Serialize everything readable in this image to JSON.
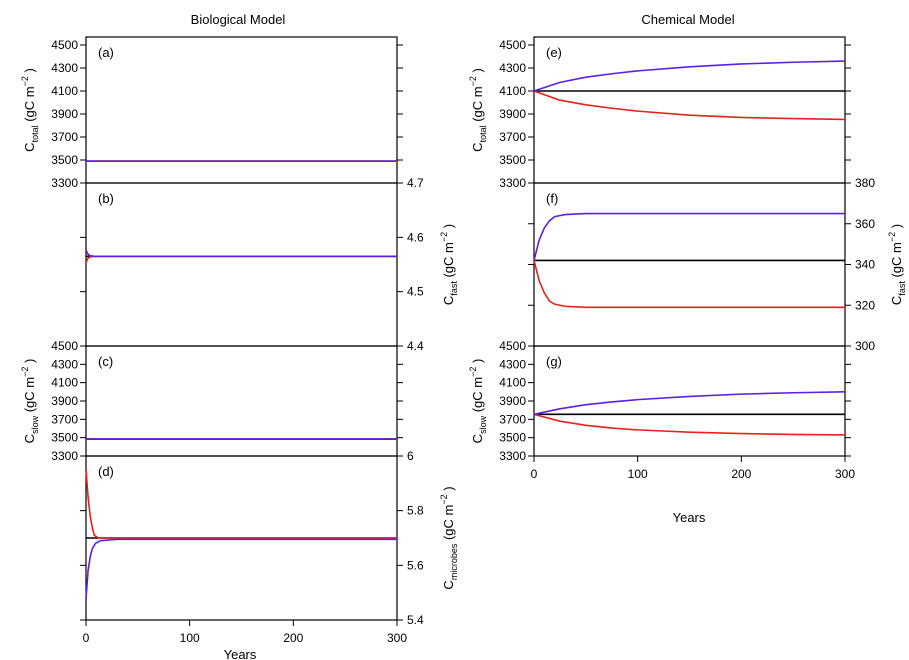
{
  "figure": {
    "column_titles": [
      "Biological Model",
      "Chemical Model"
    ],
    "x_label": "Years"
  },
  "colors": {
    "baseline": "#000000",
    "decrease": "#e8211b",
    "increase": "#5b1fe6"
  },
  "chart_data": [
    {
      "id": "a",
      "type": "line",
      "panel_label": "(a)",
      "column": "Biological Model",
      "axis_side": "left",
      "ylabel": {
        "main": "C",
        "sub": "total",
        "unit": " (gC m",
        "sup": "−2",
        "close": " )"
      },
      "xlim": [
        0,
        300
      ],
      "ylim": [
        3300,
        4500
      ],
      "y_ticks": [
        3300,
        3500,
        3700,
        3900,
        4100,
        4300,
        4500
      ],
      "series": [
        {
          "color": "#000000",
          "points": [
            [
              0,
              3490
            ],
            [
              300,
              3490
            ]
          ]
        },
        {
          "color": "#e8211b",
          "points": [
            [
              0,
              3490
            ],
            [
              300,
              3490
            ]
          ]
        },
        {
          "color": "#5b1fe6",
          "points": [
            [
              0,
              3490
            ],
            [
              300,
              3490
            ]
          ]
        }
      ]
    },
    {
      "id": "b",
      "type": "line",
      "panel_label": "(b)",
      "column": "Biological Model",
      "axis_side": "right",
      "ylabel": {
        "main": "C",
        "sub": "fast",
        "unit": " (gC m",
        "sup": "−2",
        "close": " )"
      },
      "xlim": [
        0,
        300
      ],
      "ylim": [
        4.4,
        4.7
      ],
      "y_ticks": [
        4.4,
        4.5,
        4.6,
        4.7
      ],
      "series": [
        {
          "color": "#000000",
          "points": [
            [
              0,
              4.565
            ],
            [
              300,
              4.565
            ]
          ]
        },
        {
          "color": "#e8211b",
          "points": [
            [
              0,
              4.553
            ],
            [
              1,
              4.558
            ],
            [
              2,
              4.562
            ],
            [
              4,
              4.564
            ],
            [
              8,
              4.565
            ],
            [
              300,
              4.565
            ]
          ]
        },
        {
          "color": "#5b1fe6",
          "points": [
            [
              0,
              4.577
            ],
            [
              1,
              4.572
            ],
            [
              2,
              4.569
            ],
            [
              4,
              4.566
            ],
            [
              8,
              4.565
            ],
            [
              300,
              4.565
            ]
          ]
        }
      ]
    },
    {
      "id": "c",
      "type": "line",
      "panel_label": "(c)",
      "column": "Biological Model",
      "axis_side": "left",
      "ylabel": {
        "main": "C",
        "sub": "slow",
        "unit": " (gC m",
        "sup": "−2",
        "close": " )"
      },
      "xlim": [
        0,
        300
      ],
      "ylim": [
        3300,
        4500
      ],
      "y_ticks": [
        3300,
        3500,
        3700,
        3900,
        4100,
        4300,
        4500
      ],
      "series": [
        {
          "color": "#000000",
          "points": [
            [
              0,
              3485
            ],
            [
              300,
              3485
            ]
          ]
        },
        {
          "color": "#e8211b",
          "points": [
            [
              0,
              3485
            ],
            [
              300,
              3485
            ]
          ]
        },
        {
          "color": "#5b1fe6",
          "points": [
            [
              0,
              3485
            ],
            [
              300,
              3485
            ]
          ]
        }
      ]
    },
    {
      "id": "d",
      "type": "line",
      "panel_label": "(d)",
      "column": "Biological Model",
      "axis_side": "right",
      "ylabel": {
        "main": "C",
        "sub": "microbes",
        "unit": " (gC m",
        "sup": "−2",
        "close": " )"
      },
      "xlim": [
        0,
        300
      ],
      "ylim": [
        5.4,
        6.0
      ],
      "x_ticks": [
        0,
        100,
        200,
        300
      ],
      "y_ticks": [
        5.4,
        5.6,
        5.8,
        6.0
      ],
      "series": [
        {
          "color": "#000000",
          "points": [
            [
              0,
              5.7
            ],
            [
              300,
              5.7
            ]
          ]
        },
        {
          "color": "#e8211b",
          "points": [
            [
              0,
              5.95
            ],
            [
              2,
              5.85
            ],
            [
              4,
              5.78
            ],
            [
              6,
              5.74
            ],
            [
              8,
              5.71
            ],
            [
              12,
              5.7
            ],
            [
              300,
              5.7
            ]
          ]
        },
        {
          "color": "#5b1fe6",
          "points": [
            [
              0,
              5.48
            ],
            [
              2,
              5.58
            ],
            [
              4,
              5.63
            ],
            [
              6,
              5.66
            ],
            [
              9,
              5.68
            ],
            [
              14,
              5.69
            ],
            [
              30,
              5.695
            ],
            [
              300,
              5.695
            ]
          ]
        }
      ]
    },
    {
      "id": "e",
      "type": "line",
      "panel_label": "(e)",
      "column": "Chemical Model",
      "axis_side": "left",
      "ylabel": {
        "main": "C",
        "sub": "total",
        "unit": " (gC m",
        "sup": "−2",
        "close": " )"
      },
      "xlim": [
        0,
        300
      ],
      "ylim": [
        3300,
        4500
      ],
      "y_ticks": [
        3300,
        3500,
        3700,
        3900,
        4100,
        4300,
        4500
      ],
      "series": [
        {
          "color": "#000000",
          "points": [
            [
              0,
              4100
            ],
            [
              300,
              4100
            ]
          ]
        },
        {
          "color": "#e8211b",
          "points": [
            [
              0,
              4100
            ],
            [
              25,
              4020
            ],
            [
              50,
              3980
            ],
            [
              75,
              3950
            ],
            [
              100,
              3925
            ],
            [
              150,
              3890
            ],
            [
              200,
              3870
            ],
            [
              250,
              3860
            ],
            [
              300,
              3853
            ]
          ]
        },
        {
          "color": "#5b1fe6",
          "points": [
            [
              0,
              4100
            ],
            [
              25,
              4175
            ],
            [
              50,
              4220
            ],
            [
              75,
              4250
            ],
            [
              100,
              4275
            ],
            [
              150,
              4310
            ],
            [
              200,
              4335
            ],
            [
              250,
              4350
            ],
            [
              300,
              4360
            ]
          ]
        }
      ]
    },
    {
      "id": "f",
      "type": "line",
      "panel_label": "(f)",
      "column": "Chemical Model",
      "axis_side": "right",
      "ylabel": {
        "main": "C",
        "sub": "fast",
        "unit": " (gC m",
        "sup": "−2",
        "close": " )"
      },
      "xlim": [
        0,
        300
      ],
      "ylim": [
        300,
        380
      ],
      "y_ticks": [
        300,
        320,
        340,
        360,
        380
      ],
      "series": [
        {
          "color": "#000000",
          "points": [
            [
              0,
              342
            ],
            [
              300,
              342
            ]
          ]
        },
        {
          "color": "#e8211b",
          "points": [
            [
              0,
              342
            ],
            [
              5,
              332
            ],
            [
              10,
              326
            ],
            [
              15,
              322
            ],
            [
              20,
              320.5
            ],
            [
              30,
              319.5
            ],
            [
              50,
              319
            ],
            [
              300,
              319
            ]
          ]
        },
        {
          "color": "#5b1fe6",
          "points": [
            [
              0,
              342
            ],
            [
              5,
              352
            ],
            [
              10,
              358
            ],
            [
              15,
              361.5
            ],
            [
              20,
              363.5
            ],
            [
              30,
              364.5
            ],
            [
              50,
              365
            ],
            [
              300,
              365
            ]
          ]
        }
      ]
    },
    {
      "id": "g",
      "type": "line",
      "panel_label": "(g)",
      "column": "Chemical Model",
      "axis_side": "left",
      "ylabel": {
        "main": "C",
        "sub": "slow",
        "unit": " (gC m",
        "sup": "−2",
        "close": " )"
      },
      "xlim": [
        0,
        300
      ],
      "ylim": [
        3300,
        4500
      ],
      "x_ticks": [
        0,
        100,
        200,
        300
      ],
      "y_ticks": [
        3300,
        3500,
        3700,
        3900,
        4100,
        4300,
        4500
      ],
      "series": [
        {
          "color": "#000000",
          "points": [
            [
              0,
              3755
            ],
            [
              300,
              3755
            ]
          ]
        },
        {
          "color": "#e8211b",
          "points": [
            [
              0,
              3755
            ],
            [
              25,
              3680
            ],
            [
              50,
              3635
            ],
            [
              75,
              3605
            ],
            [
              100,
              3585
            ],
            [
              150,
              3560
            ],
            [
              200,
              3545
            ],
            [
              250,
              3535
            ],
            [
              300,
              3530
            ]
          ]
        },
        {
          "color": "#5b1fe6",
          "points": [
            [
              0,
              3755
            ],
            [
              25,
              3815
            ],
            [
              50,
              3860
            ],
            [
              75,
              3890
            ],
            [
              100,
              3915
            ],
            [
              150,
              3950
            ],
            [
              200,
              3975
            ],
            [
              250,
              3990
            ],
            [
              300,
              4000
            ]
          ]
        }
      ]
    }
  ]
}
